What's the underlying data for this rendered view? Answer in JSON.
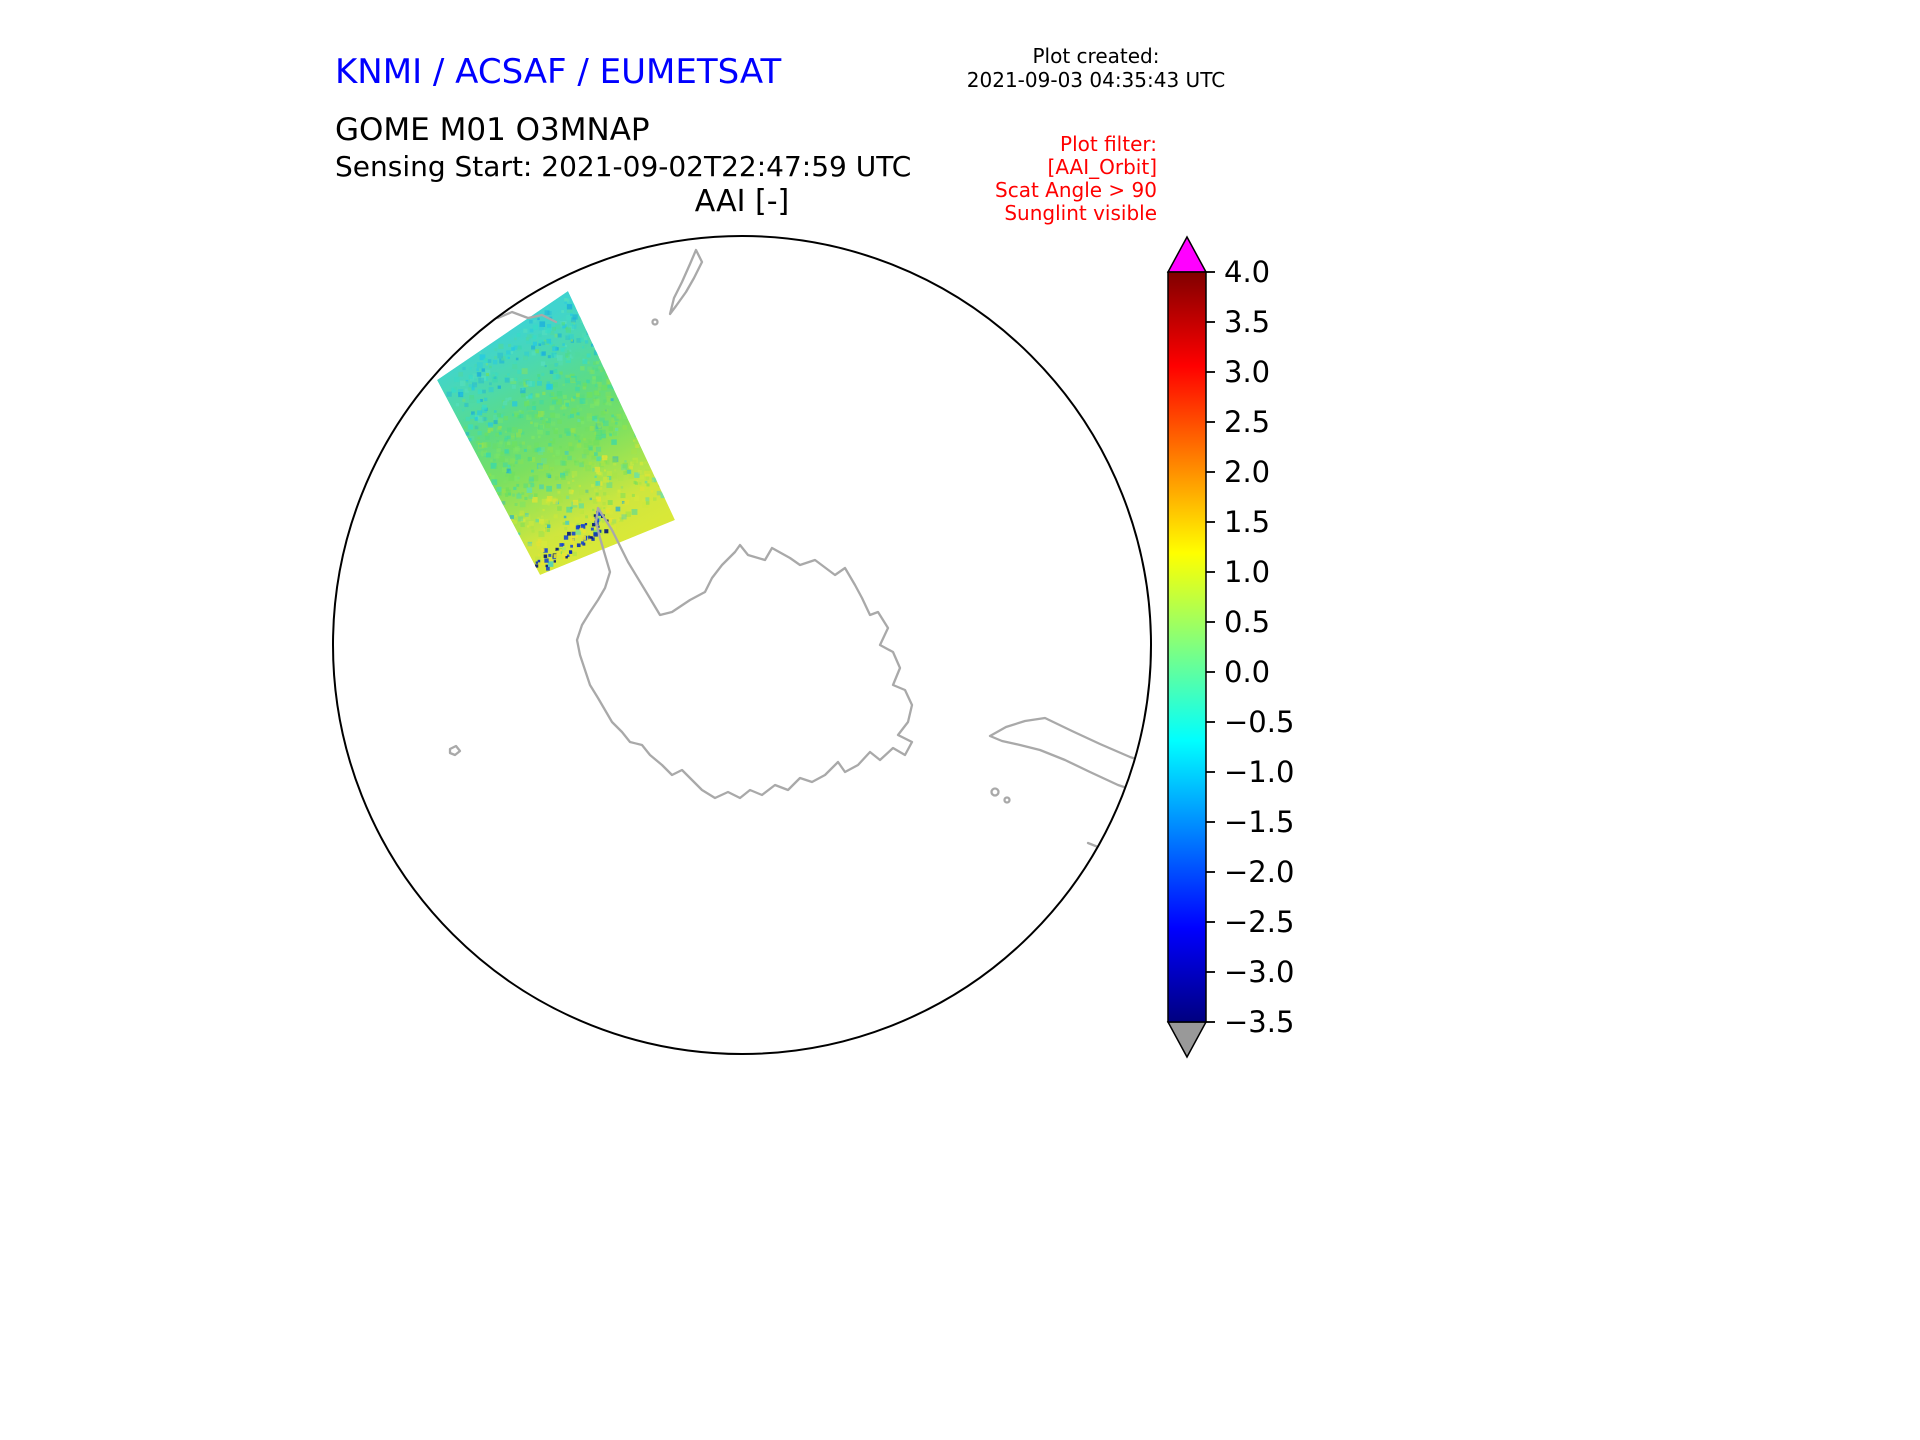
{
  "header": {
    "agency": "KNMI / ACSAF / EUMETSAT",
    "created_label": "Plot created:",
    "created_value": "2021-09-03 04:35:43 UTC",
    "product": "GOME M01 O3MNAP",
    "sensing": "Sensing Start: 2021-09-02T22:47:59 UTC",
    "map_title": "AAI [-]",
    "filter_title": "Plot filter:",
    "filter_lines": [
      "[AAI_Orbit]",
      "Scat Angle > 90",
      "Sunglint visible"
    ]
  },
  "colors": {
    "agency_blue": "#0000ff",
    "filter_red": "#ff0000",
    "text_black": "#000000",
    "coastline": "#a9a9a9",
    "globe_outline": "#000000",
    "background": "#ffffff"
  },
  "chart_data": {
    "type": "heatmap",
    "title": "AAI [-]",
    "product": "GOME M01 O3MNAP",
    "sensing_start": "2021-09-02T22:47:59 UTC",
    "plot_created": "2021-09-03 04:35:43 UTC",
    "projection": "south_polar_stereographic",
    "map_overlay": "Antarctica and southern-hemisphere coastlines",
    "filters": [
      "[AAI_Orbit]",
      "Scat Angle > 90",
      "Sunglint visible"
    ],
    "legend_position": "right_colorbar",
    "colorbar": {
      "range": [
        -3.5,
        4.0
      ],
      "tick_step": 0.5,
      "ticks": [
        4.0,
        3.5,
        3.0,
        2.5,
        2.0,
        1.5,
        1.0,
        0.5,
        0.0,
        -0.5,
        -1.0,
        -1.5,
        -2.0,
        -2.5,
        -3.0,
        -3.5
      ],
      "tick_labels": [
        "4.0",
        "3.5",
        "3.0",
        "2.5",
        "2.0",
        "1.5",
        "1.0",
        "0.5",
        "0.0",
        "−0.5",
        "−1.0",
        "−1.5",
        "−2.0",
        "−2.5",
        "−3.0",
        "−3.5"
      ],
      "colormap": "jet",
      "gradient_stops": [
        {
          "pos": 0,
          "color": "#800000"
        },
        {
          "pos": 12.5,
          "color": "#ff0000"
        },
        {
          "pos": 37.5,
          "color": "#ffff00"
        },
        {
          "pos": 62.5,
          "color": "#00ffff"
        },
        {
          "pos": 87.5,
          "color": "#0000ff"
        },
        {
          "pos": 100,
          "color": "#000080"
        }
      ],
      "over_color": "#ff00ff",
      "under_color": "#999999"
    },
    "swath": {
      "description": "single orbit swath upper-left of pole, AAI mostly between -1.5 and +1.5",
      "gradient_stops": [
        {
          "pos": 0,
          "color": "#3fd4cf"
        },
        {
          "pos": 18,
          "color": "#4dd9ab"
        },
        {
          "pos": 35,
          "color": "#5ddc82"
        },
        {
          "pos": 55,
          "color": "#7ae061"
        },
        {
          "pos": 72,
          "color": "#a6e44e"
        },
        {
          "pos": 85,
          "color": "#cfe63e"
        },
        {
          "pos": 100,
          "color": "#d9e838"
        }
      ],
      "noise_palettes": {
        "top": [
          "#22c8e6",
          "#35dcc8",
          "#4fd9a0",
          "#16aadf",
          "#57dfbe"
        ],
        "mid": [
          "#4fdc82",
          "#6ee05e",
          "#93e24e",
          "#35d8b0",
          "#7de665"
        ],
        "bottom": [
          "#a8e446",
          "#cde83a",
          "#e9e332",
          "#7ae058",
          "#d9ea3c"
        ],
        "specks": [
          "#0a2fb4",
          "#021578",
          "#e9e332",
          "#1646d2"
        ]
      }
    }
  }
}
